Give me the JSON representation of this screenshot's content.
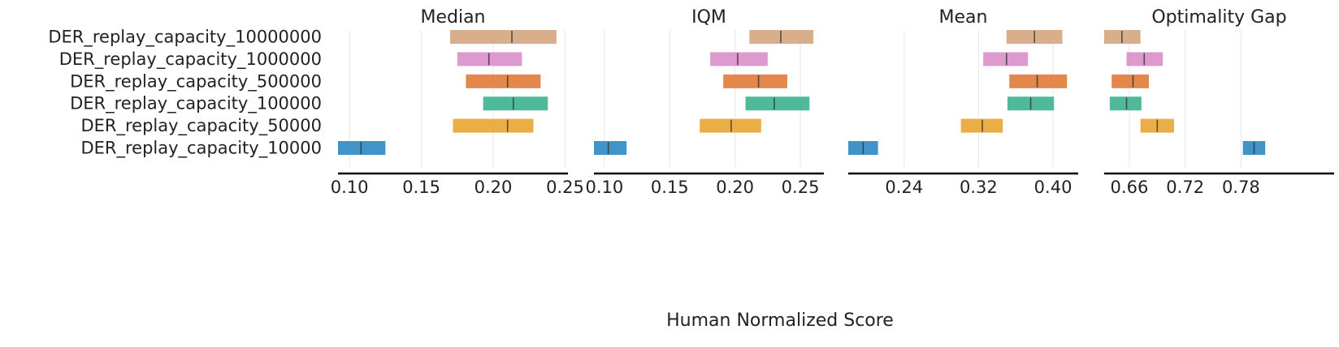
{
  "chart_data": {
    "type": "interval",
    "xlabel": "Human Normalized Score",
    "row_labels": [
      "DER_replay_capacity_10000000",
      "DER_replay_capacity_1000000",
      "DER_replay_capacity_500000",
      "DER_replay_capacity_100000",
      "DER_replay_capacity_50000",
      "DER_replay_capacity_10000"
    ],
    "colors": [
      "#d5a57e",
      "#d88fc9",
      "#e07b36",
      "#3cb38f",
      "#e8a532",
      "#2b88c4"
    ],
    "grid": true,
    "panels": [
      {
        "title": "Median",
        "xlim": [
          0.092,
          0.252
        ],
        "ticks": [
          0.1,
          0.15,
          0.2,
          0.25
        ],
        "tick_labels": [
          "0.10",
          "0.15",
          "0.20",
          "0.25"
        ],
        "intervals": [
          [
            0.17,
            0.244
          ],
          [
            0.175,
            0.22
          ],
          [
            0.181,
            0.233
          ],
          [
            0.193,
            0.238
          ],
          [
            0.172,
            0.228
          ],
          [
            0.092,
            0.125
          ]
        ],
        "points": [
          0.213,
          0.197,
          0.21,
          0.214,
          0.21,
          0.108
        ]
      },
      {
        "title": "IQM",
        "xlim": [
          0.092,
          0.268
        ],
        "ticks": [
          0.1,
          0.15,
          0.2,
          0.25
        ],
        "tick_labels": [
          "0.10",
          "0.15",
          "0.20",
          "0.25"
        ],
        "intervals": [
          [
            0.211,
            0.26
          ],
          [
            0.181,
            0.225
          ],
          [
            0.191,
            0.24
          ],
          [
            0.208,
            0.257
          ],
          [
            0.173,
            0.22
          ],
          [
            0.092,
            0.117
          ]
        ],
        "points": [
          0.235,
          0.202,
          0.218,
          0.23,
          0.197,
          0.103
        ]
      },
      {
        "title": "Mean",
        "xlim": [
          0.18,
          0.427
        ],
        "ticks": [
          0.24,
          0.32,
          0.4
        ],
        "tick_labels": [
          "0.24",
          "0.32",
          "0.40"
        ],
        "intervals": [
          [
            0.35,
            0.41
          ],
          [
            0.325,
            0.373
          ],
          [
            0.353,
            0.415
          ],
          [
            0.351,
            0.401
          ],
          [
            0.301,
            0.346
          ],
          [
            0.18,
            0.212
          ]
        ],
        "points": [
          0.38,
          0.35,
          0.383,
          0.376,
          0.324,
          0.196
        ]
      },
      {
        "title": "Optimality Gap",
        "xlim": [
          0.633,
          0.88
        ],
        "ticks": [
          0.66,
          0.72,
          0.78
        ],
        "tick_labels": [
          "0.66",
          "0.72",
          "0.78"
        ],
        "intervals": [
          [
            0.633,
            0.672
          ],
          [
            0.657,
            0.696
          ],
          [
            0.641,
            0.681
          ],
          [
            0.639,
            0.673
          ],
          [
            0.672,
            0.708
          ],
          [
            0.782,
            0.806
          ]
        ],
        "points": [
          0.652,
          0.676,
          0.664,
          0.657,
          0.69,
          0.794
        ]
      }
    ]
  }
}
